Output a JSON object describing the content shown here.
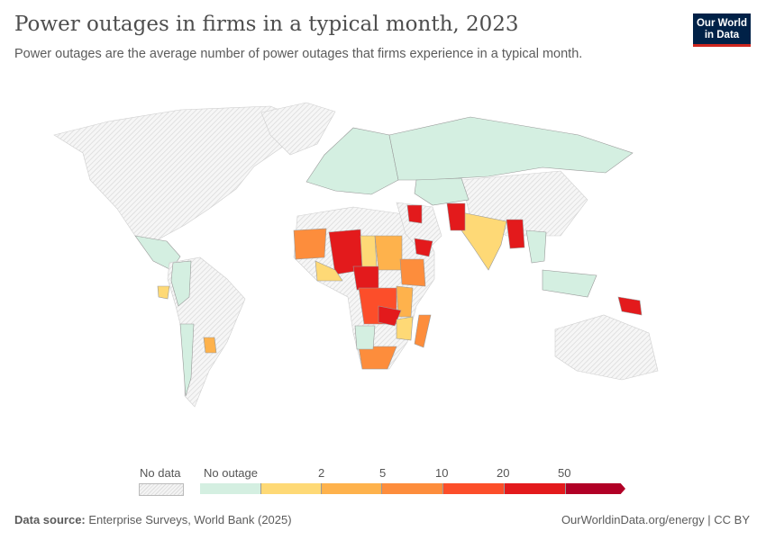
{
  "header": {
    "title": "Power outages in firms in a typical month, 2023",
    "subtitle": "Power outages are the average number of power outages that firms experience in a typical month.",
    "logo": "Our World in Data"
  },
  "legend": {
    "no_data_label": "No data",
    "bins": [
      {
        "label": "No outage",
        "color": "#d4efe1"
      },
      {
        "label": "",
        "color": "#fed976"
      },
      {
        "label": "",
        "color": "#feb24c"
      },
      {
        "label": "",
        "color": "#fd8d3c"
      },
      {
        "label": "",
        "color": "#fc4e2a"
      },
      {
        "label": "",
        "color": "#e31a1c"
      },
      {
        "label": "",
        "color": "#b10026"
      }
    ],
    "ticks": [
      "2",
      "5",
      "10",
      "20",
      "50"
    ]
  },
  "footer": {
    "source_label": "Data source:",
    "source": "Enterprise Surveys, World Bank (2025)",
    "link": "OurWorldinData.org/energy | CC BY"
  }
}
